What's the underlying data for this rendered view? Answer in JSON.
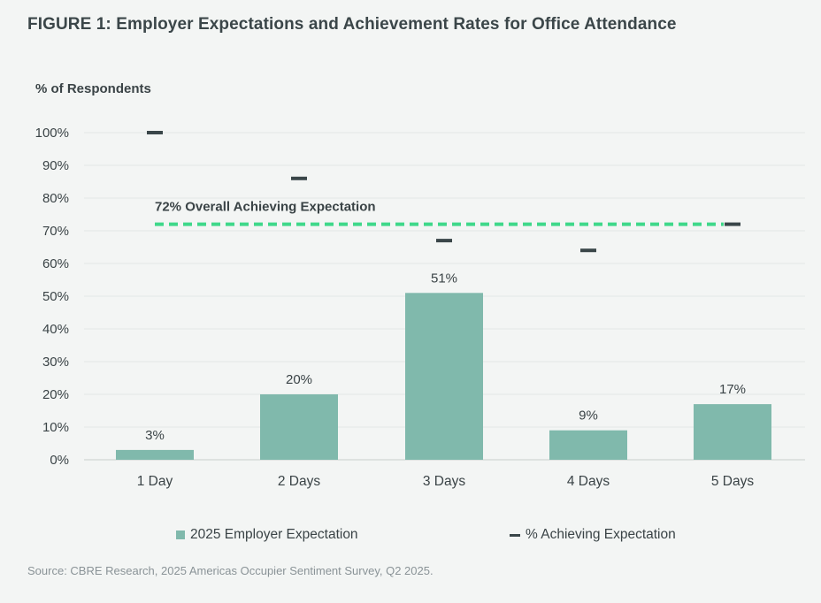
{
  "title": "FIGURE 1: Employer Expectations and Achievement Rates for Office Attendance",
  "source": "Source: CBRE Research, 2025 Americas Occupier Sentiment Survey, Q2 2025.",
  "colors": {
    "bar": "#80b9ac",
    "marker": "#3a4649",
    "reference": "#3fd88a",
    "grid": "#e3e7e6",
    "text": "#3a4346"
  },
  "chart_data": {
    "type": "bar",
    "title": "FIGURE 1: Employer Expectations and Achievement Rates for Office Attendance",
    "ylabel": "% of Respondents",
    "xlabel": "",
    "ylim": [
      0,
      100
    ],
    "yticks": [
      "0%",
      "10%",
      "20%",
      "30%",
      "40%",
      "50%",
      "60%",
      "70%",
      "80%",
      "90%",
      "100%"
    ],
    "categories": [
      "1 Day",
      "2 Days",
      "3 Days",
      "4 Days",
      "5 Days"
    ],
    "series": [
      {
        "name": "2025 Employer Expectation",
        "kind": "bar",
        "values": [
          3,
          20,
          51,
          9,
          17
        ],
        "labels": [
          "3%",
          "20%",
          "51%",
          "9%",
          "17%"
        ]
      },
      {
        "name": "% Achieving Expectation",
        "kind": "marker",
        "values": [
          100,
          86,
          67,
          64,
          72
        ]
      }
    ],
    "reference_line": {
      "value": 72,
      "label": "72% Overall Achieving Expectation"
    },
    "legend_position": "bottom"
  }
}
